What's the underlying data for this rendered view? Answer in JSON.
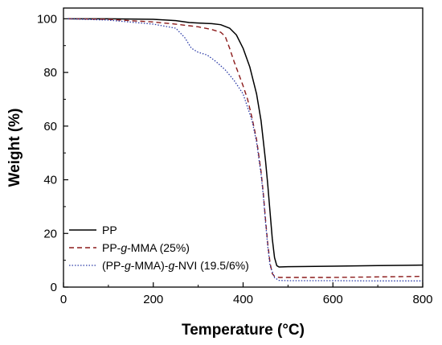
{
  "chart_data": {
    "type": "line",
    "title": "",
    "xlabel": "Temperature (°C)",
    "ylabel": "Weight (%)",
    "xlim": [
      0,
      800
    ],
    "ylim": [
      0,
      104
    ],
    "xticks": [
      0,
      200,
      400,
      600,
      800
    ],
    "yticks": [
      0,
      20,
      40,
      60,
      80,
      100
    ],
    "grid": false,
    "legend_position": "bottom-left",
    "series": [
      {
        "name": "PP",
        "legend_parts": [
          {
            "t": "PP",
            "i": false
          }
        ],
        "color": "#000000",
        "dash": "solid",
        "x": [
          10,
          100,
          200,
          250,
          280,
          300,
          330,
          350,
          370,
          385,
          400,
          415,
          430,
          440,
          450,
          455,
          460,
          465,
          470,
          475,
          480,
          500,
          600,
          700,
          800
        ],
        "y": [
          100,
          100,
          99.8,
          99.3,
          98.6,
          98.4,
          98.2,
          97.8,
          96.5,
          94,
          89,
          82,
          72,
          62,
          47,
          38,
          28,
          18,
          11,
          8,
          7.5,
          7.6,
          7.8,
          8,
          8.2
        ]
      },
      {
        "name": "PP-g-MMA (25%)",
        "legend_parts": [
          {
            "t": "PP-",
            "i": false
          },
          {
            "t": "g",
            "i": true
          },
          {
            "t": "-MMA (25%)",
            "i": false
          }
        ],
        "color": "#8b1a1a",
        "dash": "dashed",
        "x": [
          10,
          100,
          200,
          250,
          300,
          330,
          350,
          360,
          370,
          380,
          390,
          400,
          410,
          420,
          430,
          440,
          445,
          450,
          455,
          460,
          465,
          470,
          480,
          500,
          600,
          700,
          800
        ],
        "y": [
          100,
          99.8,
          98.8,
          98,
          97,
          96,
          95,
          93.5,
          89,
          84,
          79.5,
          75,
          70,
          63,
          55,
          43,
          35,
          25,
          16,
          9,
          5,
          4,
          3.6,
          3.6,
          3.6,
          3.8,
          4
        ]
      },
      {
        "name": "(PP-g-MMA)-g-NVI (19.5/6%)",
        "legend_parts": [
          {
            "t": "(PP-",
            "i": false
          },
          {
            "t": "g",
            "i": true
          },
          {
            "t": "-MMA)-",
            "i": false
          },
          {
            "t": "g",
            "i": true
          },
          {
            "t": "-NVI (19.5/6%)",
            "i": false
          }
        ],
        "color": "#2a3aa6",
        "dash": "dotted",
        "x": [
          10,
          100,
          200,
          250,
          270,
          285,
          300,
          320,
          340,
          360,
          380,
          400,
          420,
          430,
          440,
          445,
          450,
          455,
          460,
          470,
          480,
          500,
          600,
          700,
          800
        ],
        "y": [
          100,
          99.5,
          98,
          96.5,
          93,
          89,
          87.5,
          86.5,
          84,
          81,
          77,
          72,
          62,
          54,
          42,
          34,
          24,
          15,
          8,
          3.5,
          2.5,
          2.4,
          2.4,
          2.3,
          2.3
        ]
      }
    ]
  }
}
